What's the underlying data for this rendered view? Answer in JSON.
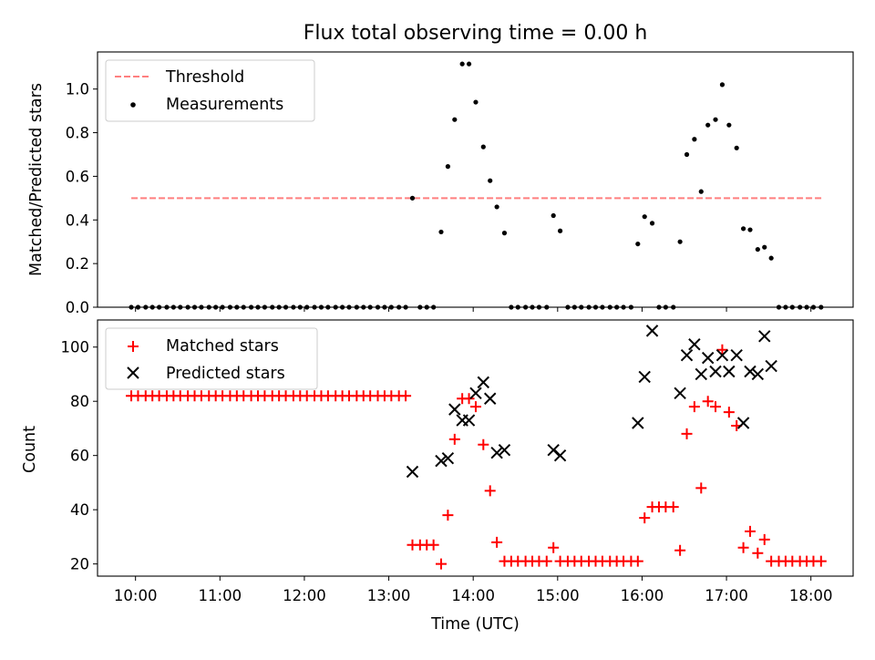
{
  "title": "Flux total observing time = 0.00 h",
  "x_axis": {
    "label": "Time (UTC)",
    "tick_labels": [
      "10:00",
      "11:00",
      "12:00",
      "13:00",
      "14:00",
      "15:00",
      "16:00",
      "17:00",
      "18:00"
    ]
  },
  "colors": {
    "threshold": "#ff7f7f",
    "measurements": "#000000",
    "matched": "#ff0000",
    "predicted": "#000000"
  },
  "chart_data": [
    {
      "type": "scatter",
      "title": "Flux total observing time = 0.00 h",
      "xlabel": "",
      "ylabel": "Matched/Predicted stars",
      "x_unit": "hours UTC",
      "xlim": [
        9.55,
        18.5
      ],
      "ylim": [
        0,
        1.17
      ],
      "yticks": [
        0.0,
        0.2,
        0.4,
        0.6,
        0.8,
        1.0
      ],
      "ytick_labels": [
        "0.0",
        "0.2",
        "0.4",
        "0.6",
        "0.8",
        "1.0"
      ],
      "legend": {
        "placement": "top-left",
        "entries": [
          "Threshold",
          "Measurements"
        ]
      },
      "threshold": {
        "name": "Threshold",
        "y": 0.5,
        "x_range": [
          9.95,
          18.13
        ],
        "style": "dashed"
      },
      "measurements": {
        "name": "Measurements",
        "points": [
          [
            9.95,
            0
          ],
          [
            10.03,
            0
          ],
          [
            10.12,
            0
          ],
          [
            10.2,
            0
          ],
          [
            10.28,
            0
          ],
          [
            10.37,
            0
          ],
          [
            10.45,
            0
          ],
          [
            10.53,
            0
          ],
          [
            10.62,
            0
          ],
          [
            10.7,
            0
          ],
          [
            10.78,
            0
          ],
          [
            10.87,
            0
          ],
          [
            10.95,
            0
          ],
          [
            11.03,
            0
          ],
          [
            11.12,
            0
          ],
          [
            11.2,
            0
          ],
          [
            11.28,
            0
          ],
          [
            11.37,
            0
          ],
          [
            11.45,
            0
          ],
          [
            11.53,
            0
          ],
          [
            11.62,
            0
          ],
          [
            11.7,
            0
          ],
          [
            11.78,
            0
          ],
          [
            11.87,
            0
          ],
          [
            11.95,
            0
          ],
          [
            12.03,
            0
          ],
          [
            12.12,
            0
          ],
          [
            12.2,
            0
          ],
          [
            12.28,
            0
          ],
          [
            12.37,
            0
          ],
          [
            12.45,
            0
          ],
          [
            12.53,
            0
          ],
          [
            12.62,
            0
          ],
          [
            12.7,
            0
          ],
          [
            12.78,
            0
          ],
          [
            12.87,
            0
          ],
          [
            12.95,
            0
          ],
          [
            13.03,
            0
          ],
          [
            13.12,
            0
          ],
          [
            13.2,
            0
          ],
          [
            13.28,
            0.5
          ],
          [
            13.37,
            0
          ],
          [
            13.45,
            0
          ],
          [
            13.53,
            0
          ],
          [
            13.62,
            0.345
          ],
          [
            13.7,
            0.645
          ],
          [
            13.78,
            0.86
          ],
          [
            13.87,
            1.115
          ],
          [
            13.95,
            1.115
          ],
          [
            14.03,
            0.94
          ],
          [
            14.12,
            0.735
          ],
          [
            14.2,
            0.58
          ],
          [
            14.28,
            0.46
          ],
          [
            14.37,
            0.34
          ],
          [
            14.45,
            0
          ],
          [
            14.53,
            0
          ],
          [
            14.62,
            0
          ],
          [
            14.7,
            0
          ],
          [
            14.78,
            0
          ],
          [
            14.87,
            0
          ],
          [
            14.95,
            0.42
          ],
          [
            15.03,
            0.35
          ],
          [
            15.12,
            0
          ],
          [
            15.2,
            0
          ],
          [
            15.28,
            0
          ],
          [
            15.37,
            0
          ],
          [
            15.45,
            0
          ],
          [
            15.53,
            0
          ],
          [
            15.62,
            0
          ],
          [
            15.7,
            0
          ],
          [
            15.78,
            0
          ],
          [
            15.87,
            0
          ],
          [
            15.95,
            0.29
          ],
          [
            16.03,
            0.415
          ],
          [
            16.12,
            0.385
          ],
          [
            16.2,
            0
          ],
          [
            16.28,
            0
          ],
          [
            16.37,
            0
          ],
          [
            16.45,
            0.3
          ],
          [
            16.53,
            0.7
          ],
          [
            16.62,
            0.77
          ],
          [
            16.7,
            0.53
          ],
          [
            16.78,
            0.835
          ],
          [
            16.87,
            0.86
          ],
          [
            16.95,
            1.02
          ],
          [
            17.03,
            0.835
          ],
          [
            17.12,
            0.73
          ],
          [
            17.2,
            0.36
          ],
          [
            17.28,
            0.355
          ],
          [
            17.37,
            0.265
          ],
          [
            17.45,
            0.275
          ],
          [
            17.53,
            0.225
          ],
          [
            17.62,
            0
          ],
          [
            17.7,
            0
          ],
          [
            17.78,
            0
          ],
          [
            17.87,
            0
          ],
          [
            17.95,
            0
          ],
          [
            18.03,
            0
          ],
          [
            18.12,
            0
          ]
        ]
      }
    },
    {
      "type": "scatter",
      "xlabel": "Time (UTC)",
      "ylabel": "Count",
      "x_unit": "hours UTC",
      "xlim": [
        9.55,
        18.5
      ],
      "ylim": [
        15.5,
        110
      ],
      "yticks": [
        20,
        40,
        60,
        80,
        100
      ],
      "ytick_labels": [
        "20",
        "40",
        "60",
        "80",
        "100"
      ],
      "xtick_values": [
        10,
        11,
        12,
        13,
        14,
        15,
        16,
        17,
        18
      ],
      "legend": {
        "placement": "top-left",
        "entries": [
          "Matched stars",
          "Predicted stars"
        ]
      },
      "series": [
        {
          "name": "Matched stars",
          "marker": "plus",
          "points": [
            [
              9.95,
              82
            ],
            [
              10.03,
              82
            ],
            [
              10.12,
              82
            ],
            [
              10.2,
              82
            ],
            [
              10.28,
              82
            ],
            [
              10.37,
              82
            ],
            [
              10.45,
              82
            ],
            [
              10.53,
              82
            ],
            [
              10.62,
              82
            ],
            [
              10.7,
              82
            ],
            [
              10.78,
              82
            ],
            [
              10.87,
              82
            ],
            [
              10.95,
              82
            ],
            [
              11.03,
              82
            ],
            [
              11.12,
              82
            ],
            [
              11.2,
              82
            ],
            [
              11.28,
              82
            ],
            [
              11.37,
              82
            ],
            [
              11.45,
              82
            ],
            [
              11.53,
              82
            ],
            [
              11.62,
              82
            ],
            [
              11.7,
              82
            ],
            [
              11.78,
              82
            ],
            [
              11.87,
              82
            ],
            [
              11.95,
              82
            ],
            [
              12.03,
              82
            ],
            [
              12.12,
              82
            ],
            [
              12.2,
              82
            ],
            [
              12.28,
              82
            ],
            [
              12.37,
              82
            ],
            [
              12.45,
              82
            ],
            [
              12.53,
              82
            ],
            [
              12.62,
              82
            ],
            [
              12.7,
              82
            ],
            [
              12.78,
              82
            ],
            [
              12.87,
              82
            ],
            [
              12.95,
              82
            ],
            [
              13.03,
              82
            ],
            [
              13.12,
              82
            ],
            [
              13.2,
              82
            ],
            [
              13.28,
              27
            ],
            [
              13.37,
              27
            ],
            [
              13.45,
              27
            ],
            [
              13.53,
              27
            ],
            [
              13.62,
              20
            ],
            [
              13.7,
              38
            ],
            [
              13.78,
              66
            ],
            [
              13.87,
              81
            ],
            [
              13.95,
              81
            ],
            [
              14.03,
              78
            ],
            [
              14.12,
              64
            ],
            [
              14.2,
              47
            ],
            [
              14.28,
              28
            ],
            [
              14.37,
              21
            ],
            [
              14.45,
              21
            ],
            [
              14.53,
              21
            ],
            [
              14.62,
              21
            ],
            [
              14.7,
              21
            ],
            [
              14.78,
              21
            ],
            [
              14.87,
              21
            ],
            [
              14.95,
              26
            ],
            [
              15.03,
              21
            ],
            [
              15.12,
              21
            ],
            [
              15.2,
              21
            ],
            [
              15.28,
              21
            ],
            [
              15.37,
              21
            ],
            [
              15.45,
              21
            ],
            [
              15.53,
              21
            ],
            [
              15.62,
              21
            ],
            [
              15.7,
              21
            ],
            [
              15.78,
              21
            ],
            [
              15.87,
              21
            ],
            [
              15.95,
              21
            ],
            [
              16.03,
              37
            ],
            [
              16.12,
              41
            ],
            [
              16.2,
              41
            ],
            [
              16.28,
              41
            ],
            [
              16.37,
              41
            ],
            [
              16.45,
              25
            ],
            [
              16.53,
              68
            ],
            [
              16.62,
              78
            ],
            [
              16.7,
              48
            ],
            [
              16.78,
              80
            ],
            [
              16.87,
              78
            ],
            [
              16.95,
              99
            ],
            [
              17.03,
              76
            ],
            [
              17.12,
              71
            ],
            [
              17.2,
              26
            ],
            [
              17.28,
              32
            ],
            [
              17.37,
              24
            ],
            [
              17.45,
              29
            ],
            [
              17.53,
              21
            ],
            [
              17.62,
              21
            ],
            [
              17.7,
              21
            ],
            [
              17.78,
              21
            ],
            [
              17.87,
              21
            ],
            [
              17.95,
              21
            ],
            [
              18.03,
              21
            ],
            [
              18.12,
              21
            ]
          ]
        },
        {
          "name": "Predicted stars",
          "marker": "x",
          "points": [
            [
              13.28,
              54
            ],
            [
              13.62,
              58
            ],
            [
              13.7,
              59
            ],
            [
              13.78,
              77
            ],
            [
              13.87,
              73
            ],
            [
              13.95,
              73
            ],
            [
              14.03,
              83
            ],
            [
              14.12,
              87
            ],
            [
              14.2,
              81
            ],
            [
              14.28,
              61
            ],
            [
              14.37,
              62
            ],
            [
              14.95,
              62
            ],
            [
              15.03,
              60
            ],
            [
              15.95,
              72
            ],
            [
              16.03,
              89
            ],
            [
              16.12,
              106
            ],
            [
              16.45,
              83
            ],
            [
              16.53,
              97
            ],
            [
              16.62,
              101
            ],
            [
              16.7,
              90
            ],
            [
              16.78,
              96
            ],
            [
              16.87,
              91
            ],
            [
              16.95,
              97
            ],
            [
              17.03,
              91
            ],
            [
              17.12,
              97
            ],
            [
              17.2,
              72
            ],
            [
              17.28,
              91
            ],
            [
              17.37,
              90
            ],
            [
              17.45,
              104
            ],
            [
              17.53,
              93
            ]
          ]
        }
      ]
    }
  ]
}
